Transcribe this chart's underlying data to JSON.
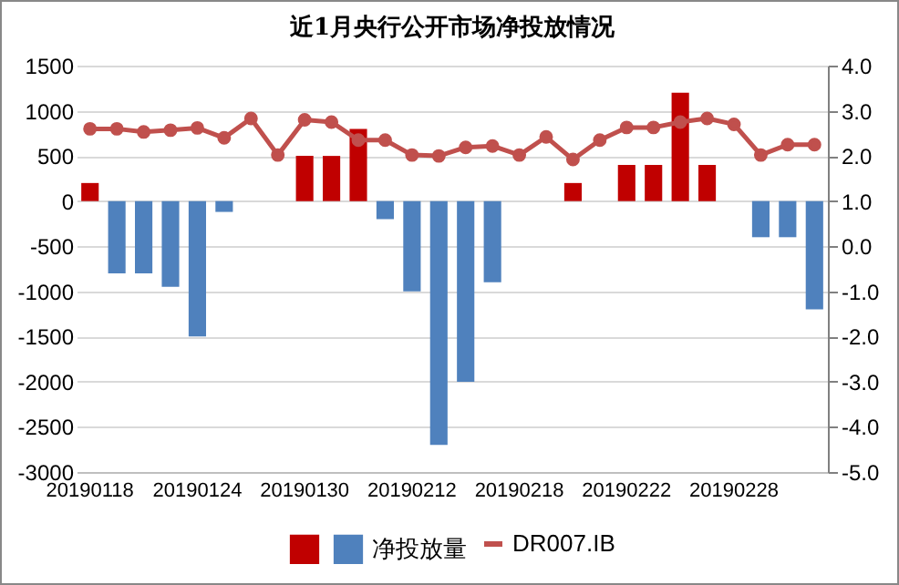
{
  "chart_data": {
    "type": "bar",
    "title": "近1月央行公开市场净投放情况",
    "categories": [
      "20190118",
      null,
      null,
      null,
      "20190124",
      null,
      null,
      null,
      "20190130",
      null,
      null,
      null,
      "20190212",
      null,
      null,
      null,
      "20190218",
      null,
      null,
      null,
      "20190222",
      null,
      null,
      null,
      "20190228",
      null,
      null,
      null
    ],
    "series": [
      {
        "color": "#c00000",
        "values": [
          200,
          null,
          null,
          null,
          null,
          null,
          null,
          null,
          500,
          500,
          800,
          null,
          null,
          null,
          null,
          null,
          null,
          null,
          200,
          null,
          400,
          400,
          1200,
          400,
          null,
          null,
          null,
          null
        ]
      },
      {
        "name": "净投放量",
        "color": "#4f81bd",
        "values": [
          null,
          -800,
          -800,
          -950,
          -1500,
          -120,
          null,
          null,
          null,
          null,
          null,
          -200,
          -1000,
          -2700,
          -2000,
          -900,
          null,
          null,
          null,
          null,
          null,
          null,
          null,
          null,
          null,
          -400,
          -400,
          -1200
        ]
      },
      {
        "name": "DR007.IB",
        "type": "line",
        "axis": "y2",
        "color": "#c0504d",
        "values": [
          2.6,
          2.6,
          2.53,
          2.57,
          2.62,
          2.4,
          2.83,
          2.02,
          2.8,
          2.75,
          2.35,
          2.35,
          2.02,
          2.0,
          2.19,
          2.22,
          2.02,
          2.42,
          1.92,
          2.35,
          2.63,
          2.63,
          2.75,
          2.83,
          2.7,
          2.02,
          2.25,
          2.25
        ]
      }
    ],
    "ylim": [
      -3000,
      1500
    ],
    "yticks": [
      -3000,
      -2500,
      -2000,
      -1500,
      -1000,
      -500,
      0,
      500,
      1000,
      1500
    ],
    "y2lim": [
      -5,
      4
    ],
    "y2ticks": [
      {
        "value": -5,
        "label": "-5.0"
      },
      {
        "value": -4,
        "label": "-4.0"
      },
      {
        "value": -3,
        "label": "-3.0"
      },
      {
        "value": -2,
        "label": "-2.0"
      },
      {
        "value": -1,
        "label": "-1.0"
      },
      {
        "value": 0,
        "label": "0.0"
      },
      {
        "value": 1,
        "label": "1.0"
      },
      {
        "value": 2,
        "label": "2.0"
      },
      {
        "value": 3,
        "label": "3.0"
      },
      {
        "value": 4,
        "label": "4.0"
      }
    ],
    "grid": "y",
    "legend": "bottom",
    "marker": "circle",
    "line_style": "solid"
  }
}
